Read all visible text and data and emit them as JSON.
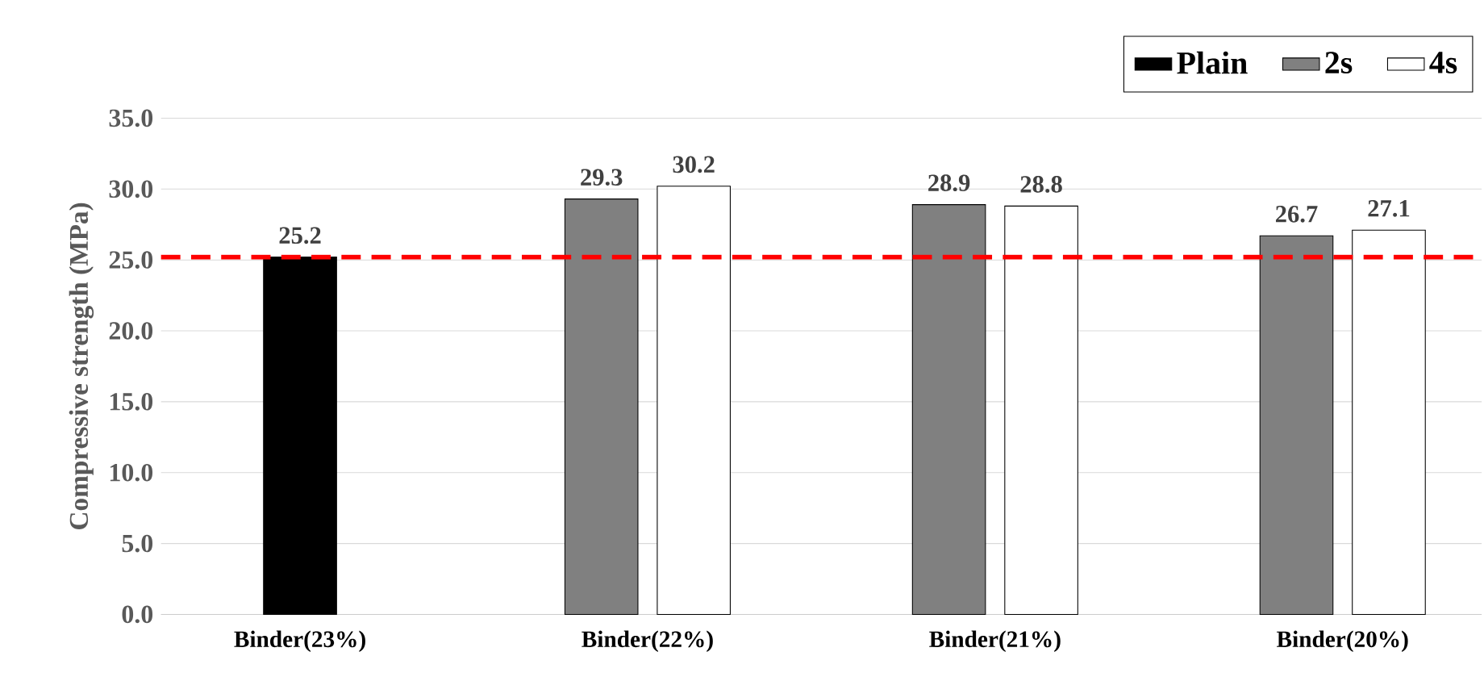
{
  "chart_data": {
    "type": "bar",
    "ylabel": "Compressive strength (MPa)",
    "categories": [
      "Binder(23%)",
      "Binder(22%)",
      "Binder(21%)",
      "Binder(20%)"
    ],
    "series": [
      {
        "name": "Plain",
        "color": "#000000",
        "values": [
          25.2,
          null,
          null,
          null
        ]
      },
      {
        "name": "2s",
        "color": "#808080",
        "values": [
          null,
          29.3,
          28.9,
          26.7
        ]
      },
      {
        "name": "4s",
        "color": "#ffffff",
        "values": [
          null,
          30.2,
          28.8,
          27.1
        ]
      }
    ],
    "ylim": [
      0,
      35
    ],
    "yticks": [
      {
        "value": 0,
        "label": "0.0"
      },
      {
        "value": 5,
        "label": "5.0"
      },
      {
        "value": 10,
        "label": "10.0"
      },
      {
        "value": 15,
        "label": "15.0"
      },
      {
        "value": 20,
        "label": "20.0"
      },
      {
        "value": 25,
        "label": "25.0"
      },
      {
        "value": 30,
        "label": "30.0"
      },
      {
        "value": 35,
        "label": "35.0"
      }
    ],
    "grid": "y",
    "legend": "top right",
    "data_labels": true,
    "ref_lines": [
      {
        "axis": "y",
        "value": 25.2,
        "color": "#ff0000",
        "line_style": "dashed"
      }
    ]
  }
}
